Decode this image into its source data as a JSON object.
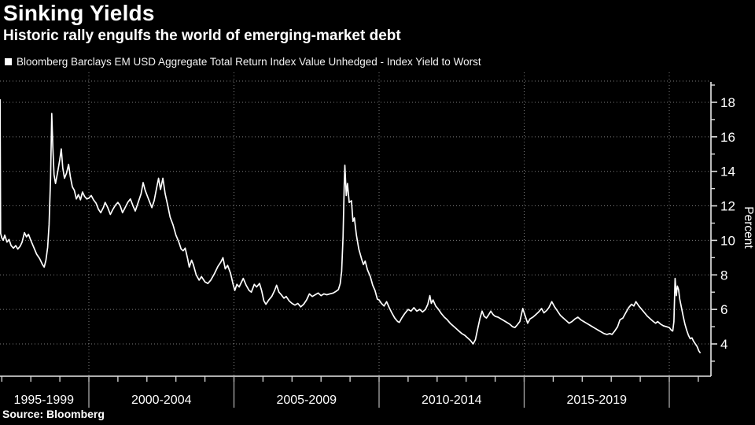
{
  "header": {
    "title": "Sinking Yields",
    "subtitle": "Historic rally engulfs the world of emerging-market debt"
  },
  "legend": {
    "marker": "square-icon",
    "marker_color": "#ffffff",
    "label": "Bloomberg Barclays EM USD Aggregate Total Return Index Value Unhedged - Index Yield to Worst"
  },
  "source": {
    "label": "Source: Bloomberg"
  },
  "colors": {
    "background": "#000000",
    "line": "#ffffff",
    "grid": "#7d7d7d",
    "axis": "#e8e8e8",
    "tick": "#dedede",
    "divider": "#aaaaaa",
    "text": "#ffffff"
  },
  "chart_data": {
    "type": "line",
    "title": "Sinking Yields",
    "subtitle": "Historic rally engulfs the world of emerging-market debt",
    "series_name": "Bloomberg Barclays EM USD Aggregate Total Return Index Value Unhedged - Index Yield to Worst",
    "ylabel": "Percent",
    "ylim": [
      2.1,
      19.25
    ],
    "xlim_years": [
      1996.94,
      2021.45
    ],
    "grid": "dotted",
    "legend_position": "top-left",
    "y_ticks_major": [
      4,
      6,
      8,
      10,
      12,
      14,
      16,
      18
    ],
    "y_ticks_minor": [
      3,
      5,
      7,
      9,
      11,
      13,
      15,
      17,
      19
    ],
    "x_minor_tick_years": [
      1997,
      1998,
      1999,
      2000,
      2001,
      2002,
      2003,
      2004,
      2005,
      2006,
      2007,
      2008,
      2009,
      2010,
      2011,
      2012,
      2013,
      2014,
      2015,
      2016,
      2017,
      2018,
      2019,
      2020,
      2021
    ],
    "x_boundary_years": [
      2000,
      2005,
      2010,
      2015,
      2020
    ],
    "x_group_labels": [
      {
        "label": "1995-1999",
        "center_year": 1998.45
      },
      {
        "label": "2000-2004",
        "center_year": 2002.5
      },
      {
        "label": "2005-2009",
        "center_year": 2007.5
      },
      {
        "label": "2010-2014",
        "center_year": 2012.5
      },
      {
        "label": "2015-2019",
        "center_year": 2017.5
      }
    ],
    "points": [
      [
        1996.94,
        18.15
      ],
      [
        1996.96,
        10.4
      ],
      [
        1997.0,
        10.15
      ],
      [
        1997.05,
        10.0
      ],
      [
        1997.1,
        10.3
      ],
      [
        1997.18,
        9.9
      ],
      [
        1997.25,
        10.05
      ],
      [
        1997.32,
        9.7
      ],
      [
        1997.4,
        9.55
      ],
      [
        1997.48,
        9.7
      ],
      [
        1997.55,
        9.5
      ],
      [
        1997.63,
        9.65
      ],
      [
        1997.7,
        9.9
      ],
      [
        1997.78,
        10.45
      ],
      [
        1997.85,
        10.2
      ],
      [
        1997.92,
        10.35
      ],
      [
        1998.0,
        10.0
      ],
      [
        1998.1,
        9.6
      ],
      [
        1998.2,
        9.2
      ],
      [
        1998.3,
        8.95
      ],
      [
        1998.4,
        8.6
      ],
      [
        1998.46,
        8.45
      ],
      [
        1998.52,
        8.85
      ],
      [
        1998.58,
        9.6
      ],
      [
        1998.63,
        10.9
      ],
      [
        1998.68,
        13.6
      ],
      [
        1998.72,
        17.35
      ],
      [
        1998.76,
        15.4
      ],
      [
        1998.8,
        13.8
      ],
      [
        1998.85,
        13.3
      ],
      [
        1998.92,
        13.9
      ],
      [
        1999.0,
        14.7
      ],
      [
        1999.05,
        15.3
      ],
      [
        1999.1,
        14.2
      ],
      [
        1999.16,
        13.6
      ],
      [
        1999.23,
        13.9
      ],
      [
        1999.3,
        14.4
      ],
      [
        1999.36,
        13.7
      ],
      [
        1999.43,
        13.1
      ],
      [
        1999.5,
        12.9
      ],
      [
        1999.57,
        12.4
      ],
      [
        1999.64,
        12.65
      ],
      [
        1999.71,
        12.35
      ],
      [
        1999.78,
        12.8
      ],
      [
        1999.85,
        12.55
      ],
      [
        1999.93,
        12.4
      ],
      [
        2000.0,
        12.45
      ],
      [
        2000.08,
        12.6
      ],
      [
        2000.16,
        12.35
      ],
      [
        2000.25,
        12.15
      ],
      [
        2000.33,
        11.8
      ],
      [
        2000.41,
        11.6
      ],
      [
        2000.5,
        11.9
      ],
      [
        2000.56,
        12.2
      ],
      [
        2000.65,
        11.9
      ],
      [
        2000.74,
        11.5
      ],
      [
        2000.83,
        11.8
      ],
      [
        2000.92,
        12.05
      ],
      [
        2001.0,
        12.2
      ],
      [
        2001.08,
        12.0
      ],
      [
        2001.16,
        11.6
      ],
      [
        2001.25,
        11.9
      ],
      [
        2001.34,
        12.2
      ],
      [
        2001.43,
        12.4
      ],
      [
        2001.52,
        12.0
      ],
      [
        2001.6,
        11.7
      ],
      [
        2001.7,
        12.2
      ],
      [
        2001.8,
        12.7
      ],
      [
        2001.87,
        13.35
      ],
      [
        2001.94,
        12.9
      ],
      [
        2002.02,
        12.55
      ],
      [
        2002.1,
        12.2
      ],
      [
        2002.17,
        11.9
      ],
      [
        2002.25,
        12.3
      ],
      [
        2002.33,
        13.0
      ],
      [
        2002.4,
        13.6
      ],
      [
        2002.47,
        12.95
      ],
      [
        2002.55,
        13.6
      ],
      [
        2002.63,
        12.7
      ],
      [
        2002.72,
        12.0
      ],
      [
        2002.8,
        11.35
      ],
      [
        2002.9,
        10.9
      ],
      [
        2003.0,
        10.3
      ],
      [
        2003.1,
        9.9
      ],
      [
        2003.18,
        9.5
      ],
      [
        2003.25,
        9.4
      ],
      [
        2003.32,
        9.55
      ],
      [
        2003.4,
        8.95
      ],
      [
        2003.46,
        8.45
      ],
      [
        2003.54,
        8.85
      ],
      [
        2003.6,
        8.6
      ],
      [
        2003.7,
        8.0
      ],
      [
        2003.8,
        7.7
      ],
      [
        2003.88,
        7.9
      ],
      [
        2004.0,
        7.6
      ],
      [
        2004.1,
        7.5
      ],
      [
        2004.2,
        7.7
      ],
      [
        2004.32,
        8.05
      ],
      [
        2004.45,
        8.5
      ],
      [
        2004.55,
        8.75
      ],
      [
        2004.62,
        9.0
      ],
      [
        2004.7,
        8.35
      ],
      [
        2004.78,
        8.55
      ],
      [
        2004.88,
        8.1
      ],
      [
        2004.97,
        7.45
      ],
      [
        2005.03,
        7.1
      ],
      [
        2005.1,
        7.45
      ],
      [
        2005.18,
        7.3
      ],
      [
        2005.25,
        7.55
      ],
      [
        2005.32,
        7.8
      ],
      [
        2005.42,
        7.4
      ],
      [
        2005.52,
        7.1
      ],
      [
        2005.6,
        7.0
      ],
      [
        2005.7,
        7.45
      ],
      [
        2005.78,
        7.3
      ],
      [
        2005.88,
        7.5
      ],
      [
        2005.95,
        7.1
      ],
      [
        2006.03,
        6.5
      ],
      [
        2006.1,
        6.3
      ],
      [
        2006.2,
        6.55
      ],
      [
        2006.3,
        6.75
      ],
      [
        2006.4,
        7.1
      ],
      [
        2006.47,
        7.4
      ],
      [
        2006.55,
        7.0
      ],
      [
        2006.63,
        6.85
      ],
      [
        2006.72,
        6.65
      ],
      [
        2006.8,
        6.75
      ],
      [
        2006.9,
        6.5
      ],
      [
        2007.0,
        6.35
      ],
      [
        2007.1,
        6.25
      ],
      [
        2007.2,
        6.35
      ],
      [
        2007.3,
        6.15
      ],
      [
        2007.4,
        6.3
      ],
      [
        2007.5,
        6.55
      ],
      [
        2007.6,
        6.9
      ],
      [
        2007.7,
        6.75
      ],
      [
        2007.8,
        6.85
      ],
      [
        2007.9,
        6.95
      ],
      [
        2008.0,
        6.8
      ],
      [
        2008.1,
        6.9
      ],
      [
        2008.2,
        6.85
      ],
      [
        2008.3,
        6.9
      ],
      [
        2008.42,
        6.95
      ],
      [
        2008.52,
        7.05
      ],
      [
        2008.6,
        7.15
      ],
      [
        2008.66,
        7.5
      ],
      [
        2008.71,
        8.2
      ],
      [
        2008.76,
        10.2
      ],
      [
        2008.8,
        13.2
      ],
      [
        2008.82,
        14.35
      ],
      [
        2008.87,
        12.6
      ],
      [
        2008.91,
        13.3
      ],
      [
        2008.97,
        12.2
      ],
      [
        2009.05,
        12.3
      ],
      [
        2009.1,
        11.1
      ],
      [
        2009.15,
        11.3
      ],
      [
        2009.22,
        10.3
      ],
      [
        2009.3,
        9.5
      ],
      [
        2009.4,
        8.9
      ],
      [
        2009.46,
        8.6
      ],
      [
        2009.52,
        8.8
      ],
      [
        2009.6,
        8.3
      ],
      [
        2009.7,
        7.9
      ],
      [
        2009.78,
        7.4
      ],
      [
        2009.86,
        7.1
      ],
      [
        2009.94,
        6.6
      ],
      [
        2010.0,
        6.55
      ],
      [
        2010.08,
        6.35
      ],
      [
        2010.17,
        6.2
      ],
      [
        2010.26,
        6.45
      ],
      [
        2010.35,
        6.1
      ],
      [
        2010.44,
        5.8
      ],
      [
        2010.54,
        5.5
      ],
      [
        2010.64,
        5.3
      ],
      [
        2010.7,
        5.25
      ],
      [
        2010.78,
        5.5
      ],
      [
        2010.88,
        5.75
      ],
      [
        2011.0,
        6.0
      ],
      [
        2011.1,
        5.9
      ],
      [
        2011.2,
        6.1
      ],
      [
        2011.3,
        5.9
      ],
      [
        2011.4,
        6.0
      ],
      [
        2011.5,
        5.85
      ],
      [
        2011.6,
        6.0
      ],
      [
        2011.68,
        6.3
      ],
      [
        2011.75,
        6.8
      ],
      [
        2011.8,
        6.35
      ],
      [
        2011.86,
        6.55
      ],
      [
        2011.95,
        6.2
      ],
      [
        2012.05,
        6.0
      ],
      [
        2012.15,
        5.75
      ],
      [
        2012.25,
        5.55
      ],
      [
        2012.35,
        5.4
      ],
      [
        2012.45,
        5.2
      ],
      [
        2012.55,
        5.05
      ],
      [
        2012.65,
        4.9
      ],
      [
        2012.75,
        4.75
      ],
      [
        2012.85,
        4.6
      ],
      [
        2012.95,
        4.5
      ],
      [
        2013.05,
        4.35
      ],
      [
        2013.15,
        4.2
      ],
      [
        2013.24,
        4.0
      ],
      [
        2013.32,
        4.25
      ],
      [
        2013.4,
        4.9
      ],
      [
        2013.48,
        5.5
      ],
      [
        2013.55,
        5.9
      ],
      [
        2013.62,
        5.6
      ],
      [
        2013.7,
        5.5
      ],
      [
        2013.78,
        5.7
      ],
      [
        2013.85,
        5.9
      ],
      [
        2013.93,
        5.7
      ],
      [
        2014.0,
        5.6
      ],
      [
        2014.1,
        5.55
      ],
      [
        2014.2,
        5.45
      ],
      [
        2014.3,
        5.35
      ],
      [
        2014.4,
        5.25
      ],
      [
        2014.5,
        5.15
      ],
      [
        2014.6,
        5.0
      ],
      [
        2014.68,
        4.95
      ],
      [
        2014.76,
        5.1
      ],
      [
        2014.85,
        5.3
      ],
      [
        2014.95,
        6.05
      ],
      [
        2015.03,
        5.65
      ],
      [
        2015.12,
        5.2
      ],
      [
        2015.2,
        5.45
      ],
      [
        2015.3,
        5.55
      ],
      [
        2015.4,
        5.7
      ],
      [
        2015.5,
        5.85
      ],
      [
        2015.6,
        6.05
      ],
      [
        2015.68,
        5.8
      ],
      [
        2015.78,
        5.95
      ],
      [
        2015.85,
        6.1
      ],
      [
        2015.95,
        6.45
      ],
      [
        2016.05,
        6.15
      ],
      [
        2016.15,
        5.9
      ],
      [
        2016.25,
        5.65
      ],
      [
        2016.35,
        5.5
      ],
      [
        2016.45,
        5.35
      ],
      [
        2016.55,
        5.2
      ],
      [
        2016.65,
        5.3
      ],
      [
        2016.75,
        5.45
      ],
      [
        2016.85,
        5.55
      ],
      [
        2016.95,
        5.4
      ],
      [
        2017.05,
        5.3
      ],
      [
        2017.15,
        5.2
      ],
      [
        2017.25,
        5.1
      ],
      [
        2017.35,
        5.0
      ],
      [
        2017.45,
        4.9
      ],
      [
        2017.55,
        4.8
      ],
      [
        2017.65,
        4.7
      ],
      [
        2017.75,
        4.6
      ],
      [
        2017.85,
        4.55
      ],
      [
        2017.95,
        4.6
      ],
      [
        2018.03,
        4.55
      ],
      [
        2018.12,
        4.75
      ],
      [
        2018.22,
        5.0
      ],
      [
        2018.3,
        5.4
      ],
      [
        2018.4,
        5.5
      ],
      [
        2018.5,
        5.8
      ],
      [
        2018.6,
        6.1
      ],
      [
        2018.7,
        6.3
      ],
      [
        2018.78,
        6.2
      ],
      [
        2018.85,
        6.45
      ],
      [
        2018.95,
        6.2
      ],
      [
        2019.05,
        6.0
      ],
      [
        2019.15,
        5.8
      ],
      [
        2019.25,
        5.6
      ],
      [
        2019.35,
        5.45
      ],
      [
        2019.45,
        5.3
      ],
      [
        2019.53,
        5.2
      ],
      [
        2019.6,
        5.3
      ],
      [
        2019.7,
        5.15
      ],
      [
        2019.8,
        5.05
      ],
      [
        2019.9,
        5.0
      ],
      [
        2020.0,
        4.95
      ],
      [
        2020.07,
        4.8
      ],
      [
        2020.12,
        4.75
      ],
      [
        2020.16,
        5.3
      ],
      [
        2020.2,
        7.8
      ],
      [
        2020.24,
        6.8
      ],
      [
        2020.28,
        7.35
      ],
      [
        2020.32,
        7.15
      ],
      [
        2020.36,
        6.6
      ],
      [
        2020.42,
        6.1
      ],
      [
        2020.48,
        5.6
      ],
      [
        2020.54,
        5.15
      ],
      [
        2020.6,
        4.8
      ],
      [
        2020.66,
        4.5
      ],
      [
        2020.72,
        4.3
      ],
      [
        2020.78,
        4.35
      ],
      [
        2020.84,
        4.15
      ],
      [
        2020.9,
        4.0
      ],
      [
        2020.96,
        3.85
      ],
      [
        2021.02,
        3.6
      ],
      [
        2021.06,
        3.5
      ]
    ]
  }
}
